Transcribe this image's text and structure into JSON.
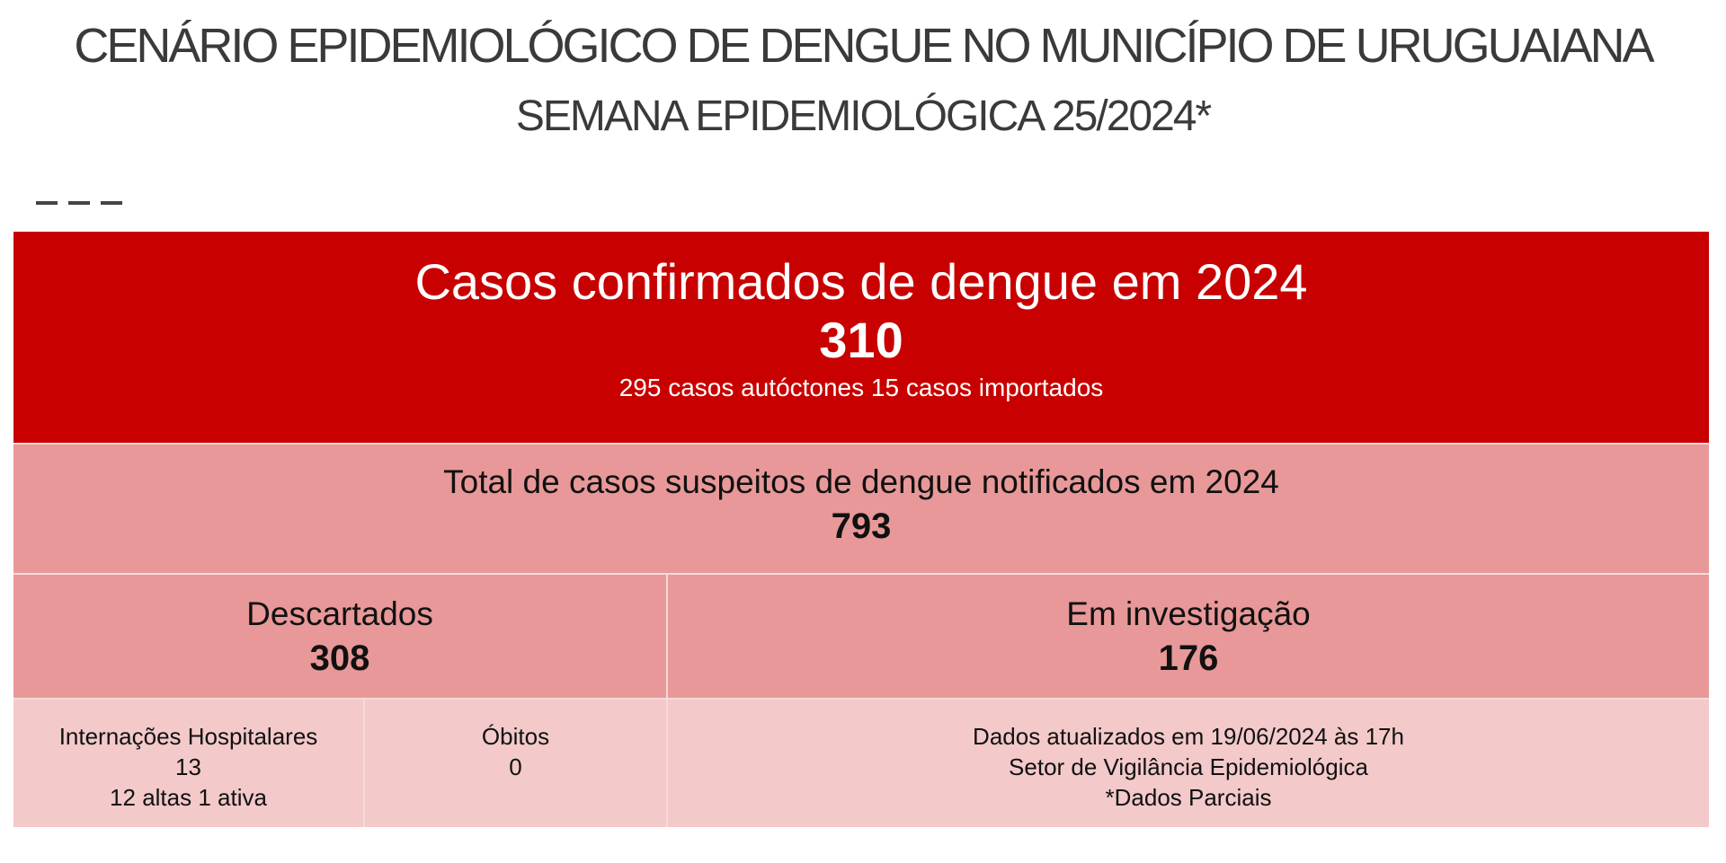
{
  "header": {
    "title": "CENÁRIO EPIDEMIOLÓGICO DE DENGUE NO MUNICÍPIO DE URUGUAIANA",
    "subtitle": "SEMANA EPIDEMIOLÓGICA 25/2024*"
  },
  "colors": {
    "confirmed_bg": "#c80000",
    "suspects_bg": "#e89898",
    "details_bg": "#f3c9c9"
  },
  "confirmed": {
    "label": "Casos confirmados de dengue em 2024",
    "value": "310",
    "breakdown": "295 casos autóctones 15 casos importados"
  },
  "suspects": {
    "label": "Total de casos suspeitos de dengue notificados em 2024",
    "value": "793"
  },
  "discarded": {
    "label": "Descartados",
    "value": "308"
  },
  "investigation": {
    "label": "Em investigação",
    "value": "176"
  },
  "hospital": {
    "label": "Internações Hospitalares",
    "value": "13",
    "detail": "12 altas 1 ativa"
  },
  "deaths": {
    "label": "Óbitos",
    "value": "0"
  },
  "info": {
    "updated": "Dados atualizados em 19/06/2024 às 17h",
    "source": "Setor de Vigilância Epidemiológica",
    "note": "*Dados Parciais"
  }
}
